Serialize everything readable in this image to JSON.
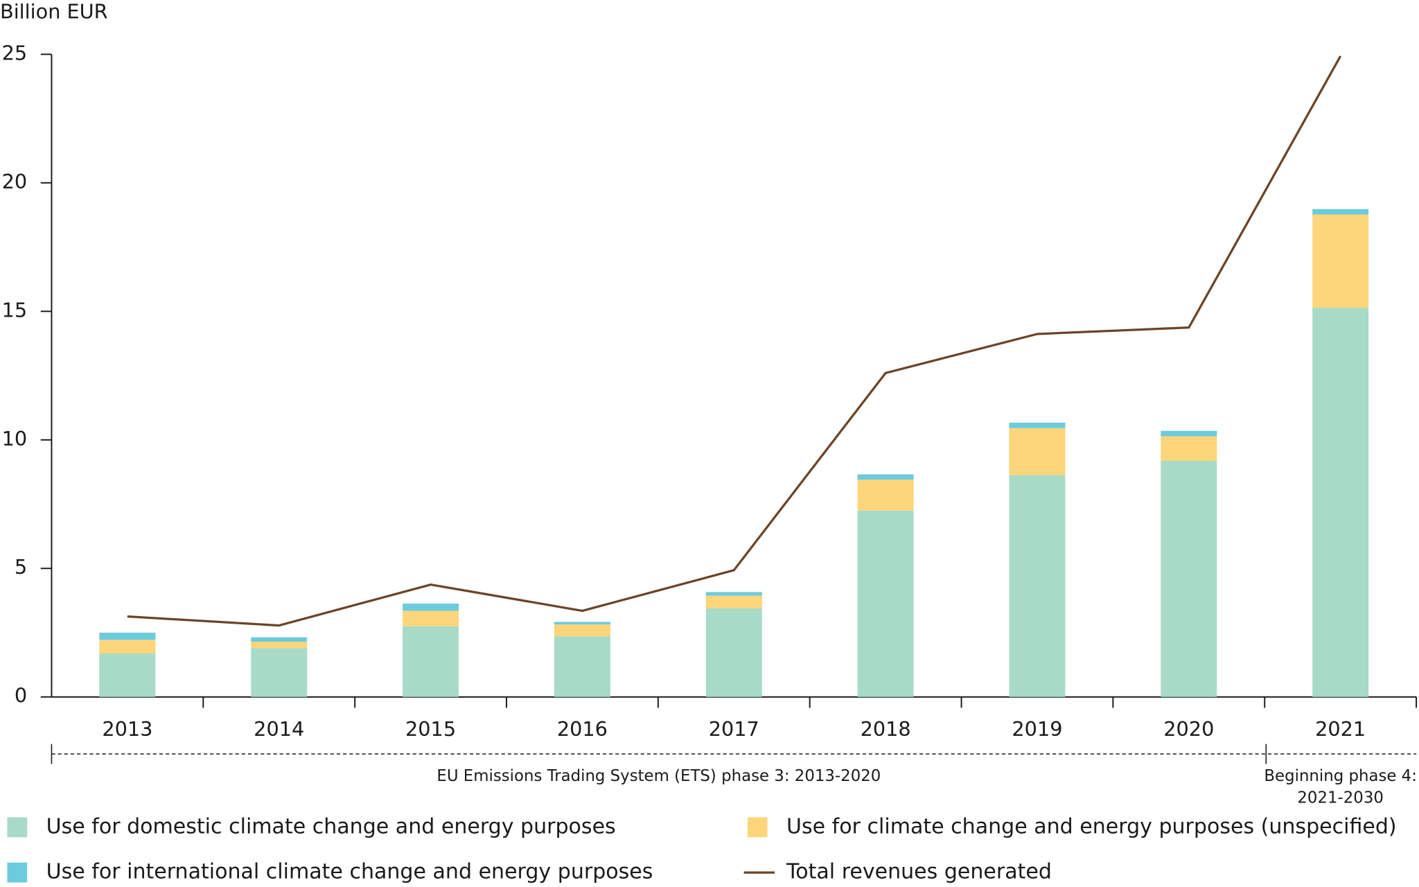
{
  "chart_data": {
    "type": "bar",
    "stacked": true,
    "y_label": "Billion EUR",
    "categories": [
      "2013",
      "2014",
      "2015",
      "2016",
      "2017",
      "2018",
      "2019",
      "2020",
      "2021"
    ],
    "series": [
      {
        "name": "Use for domestic climate change and energy purposes",
        "type": "bar",
        "color": "#a8dac8",
        "values": [
          1.69,
          1.9,
          2.75,
          2.36,
          3.45,
          7.25,
          8.63,
          9.19,
          15.14
        ]
      },
      {
        "name": "Use for climate change and energy purposes (unspecified)",
        "type": "bar",
        "color": "#fdd57a",
        "values": [
          0.53,
          0.25,
          0.6,
          0.46,
          0.49,
          1.2,
          1.83,
          0.95,
          3.63
        ]
      },
      {
        "name": "Use for international climate change and energy purposes",
        "type": "bar",
        "color": "#6ccbdc",
        "values": [
          0.28,
          0.17,
          0.28,
          0.1,
          0.14,
          0.21,
          0.21,
          0.21,
          0.21
        ]
      },
      {
        "name": "Total revenues generated",
        "type": "line",
        "color": "#6b4426",
        "values": [
          3.13,
          2.78,
          4.37,
          3.35,
          4.93,
          12.6,
          14.12,
          14.37,
          24.93
        ]
      }
    ],
    "ylim": [
      0,
      25
    ],
    "yticks": [
      0,
      5,
      10,
      15,
      20,
      25
    ],
    "grid": false,
    "annotations": [
      {
        "lines": [
          "EU Emissions Trading System (ETS) phase 3: 2013-2020"
        ]
      },
      {
        "lines": [
          "Beginning phase 4:",
          "2021-2030"
        ]
      }
    ]
  }
}
